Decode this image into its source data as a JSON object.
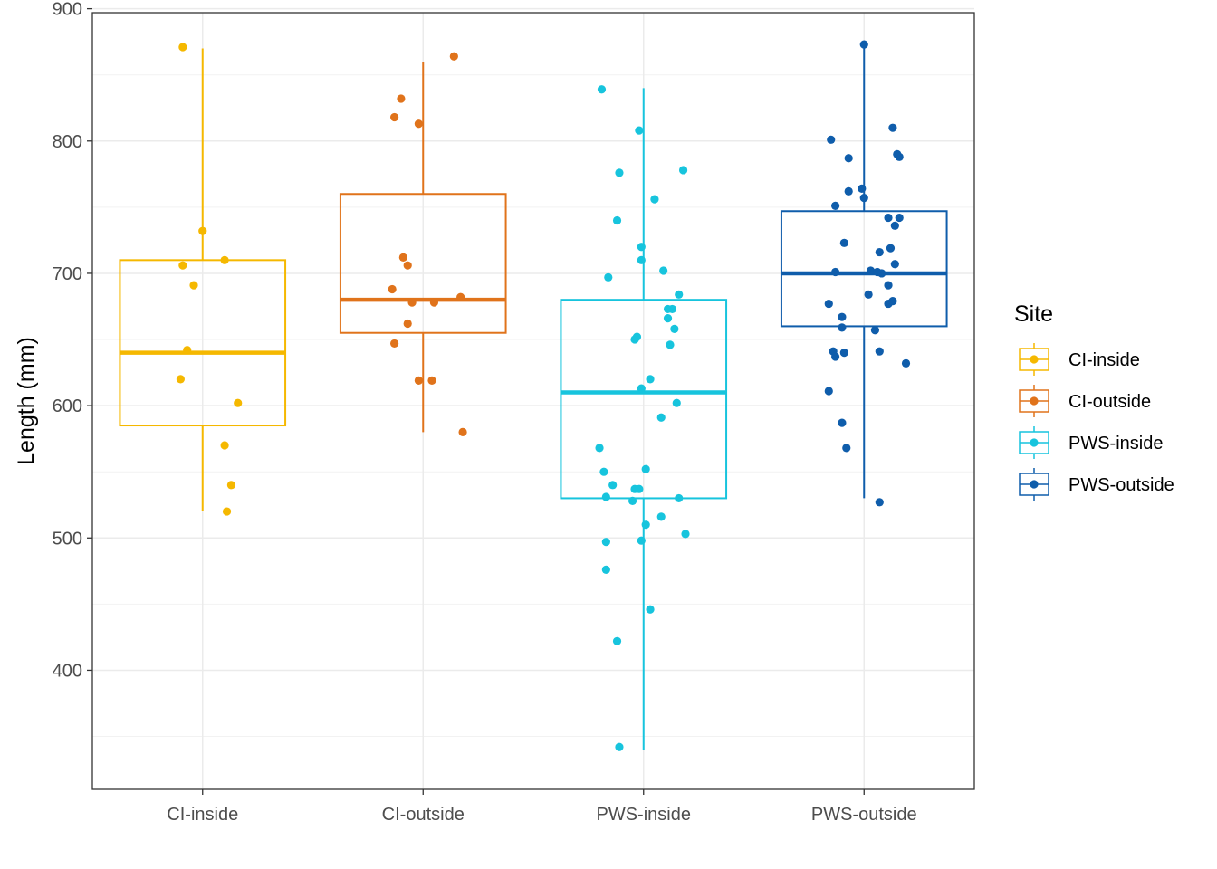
{
  "chart_data": {
    "type": "box",
    "xlabel": "",
    "ylabel": "Length (mm)",
    "ylim": [
      310,
      897
    ],
    "yticks": [
      400,
      500,
      600,
      700,
      800,
      900
    ],
    "categories": [
      "CI-inside",
      "CI-outside",
      "PWS-inside",
      "PWS-outside"
    ],
    "legend": {
      "title": "Site",
      "position": "right"
    },
    "grid": true,
    "series": [
      {
        "name": "CI-inside",
        "color": "#F5B800",
        "box": {
          "whisker_low": 520,
          "q1": 585,
          "median": 640,
          "q3": 710,
          "whisker_high": 870
        },
        "points": [
          [
            -0.09,
            871
          ],
          [
            0.0,
            732
          ],
          [
            -0.09,
            706
          ],
          [
            0.1,
            710
          ],
          [
            -0.04,
            691
          ],
          [
            -0.07,
            642
          ],
          [
            -0.1,
            620
          ],
          [
            0.16,
            602
          ],
          [
            0.1,
            570
          ],
          [
            0.13,
            540
          ],
          [
            0.11,
            520
          ]
        ]
      },
      {
        "name": "CI-outside",
        "color": "#E0731B",
        "box": {
          "whisker_low": 580,
          "q1": 655,
          "median": 680,
          "q3": 760,
          "whisker_high": 860
        },
        "points": [
          [
            0.14,
            864
          ],
          [
            -0.1,
            832
          ],
          [
            -0.13,
            818
          ],
          [
            -0.02,
            813
          ],
          [
            -0.09,
            712
          ],
          [
            -0.07,
            706
          ],
          [
            -0.14,
            688
          ],
          [
            -0.05,
            678
          ],
          [
            0.05,
            678
          ],
          [
            0.17,
            682
          ],
          [
            -0.07,
            662
          ],
          [
            -0.13,
            647
          ],
          [
            -0.02,
            619
          ],
          [
            0.04,
            619
          ],
          [
            0.18,
            580
          ]
        ]
      },
      {
        "name": "PWS-inside",
        "color": "#17C4DD",
        "box": {
          "whisker_low": 340,
          "q1": 530,
          "median": 610,
          "q3": 680,
          "whisker_high": 840
        },
        "points": [
          [
            -0.19,
            839
          ],
          [
            -0.02,
            808
          ],
          [
            0.18,
            778
          ],
          [
            -0.11,
            776
          ],
          [
            0.05,
            756
          ],
          [
            -0.12,
            740
          ],
          [
            -0.01,
            720
          ],
          [
            -0.01,
            710
          ],
          [
            0.09,
            702
          ],
          [
            -0.16,
            697
          ],
          [
            0.16,
            684
          ],
          [
            0.13,
            673
          ],
          [
            0.11,
            673
          ],
          [
            0.11,
            666
          ],
          [
            0.14,
            658
          ],
          [
            -0.04,
            650
          ],
          [
            -0.03,
            652
          ],
          [
            0.12,
            646
          ],
          [
            0.03,
            620
          ],
          [
            -0.01,
            613
          ],
          [
            0.15,
            602
          ],
          [
            0.08,
            591
          ],
          [
            -0.2,
            568
          ],
          [
            -0.18,
            550
          ],
          [
            0.01,
            552
          ],
          [
            -0.14,
            540
          ],
          [
            -0.17,
            531
          ],
          [
            -0.04,
            537
          ],
          [
            -0.02,
            537
          ],
          [
            0.16,
            530
          ],
          [
            -0.05,
            528
          ],
          [
            0.01,
            510
          ],
          [
            0.08,
            516
          ],
          [
            0.19,
            503
          ],
          [
            -0.17,
            497
          ],
          [
            -0.01,
            498
          ],
          [
            -0.17,
            476
          ],
          [
            0.03,
            446
          ],
          [
            -0.12,
            422
          ],
          [
            -0.11,
            342
          ]
        ]
      },
      {
        "name": "PWS-outside",
        "color": "#0F5DAB",
        "box": {
          "whisker_low": 530,
          "q1": 660,
          "median": 700,
          "q3": 747,
          "whisker_high": 870
        },
        "points": [
          [
            0.0,
            873
          ],
          [
            0.13,
            810
          ],
          [
            -0.15,
            801
          ],
          [
            0.15,
            790
          ],
          [
            0.16,
            788
          ],
          [
            -0.07,
            787
          ],
          [
            -0.01,
            764
          ],
          [
            -0.07,
            762
          ],
          [
            0.0,
            757
          ],
          [
            -0.13,
            751
          ],
          [
            0.11,
            742
          ],
          [
            0.16,
            742
          ],
          [
            0.14,
            736
          ],
          [
            -0.09,
            723
          ],
          [
            0.12,
            719
          ],
          [
            0.07,
            716
          ],
          [
            0.14,
            707
          ],
          [
            0.03,
            702
          ],
          [
            -0.13,
            701
          ],
          [
            0.06,
            701
          ],
          [
            0.08,
            700
          ],
          [
            0.11,
            691
          ],
          [
            0.02,
            684
          ],
          [
            -0.16,
            677
          ],
          [
            0.11,
            677
          ],
          [
            0.13,
            679
          ],
          [
            -0.1,
            667
          ],
          [
            -0.1,
            659
          ],
          [
            0.05,
            657
          ],
          [
            -0.14,
            641
          ],
          [
            -0.13,
            637
          ],
          [
            -0.09,
            640
          ],
          [
            0.07,
            641
          ],
          [
            0.19,
            632
          ],
          [
            -0.16,
            611
          ],
          [
            -0.1,
            587
          ],
          [
            -0.08,
            568
          ],
          [
            0.07,
            527
          ]
        ]
      }
    ]
  }
}
